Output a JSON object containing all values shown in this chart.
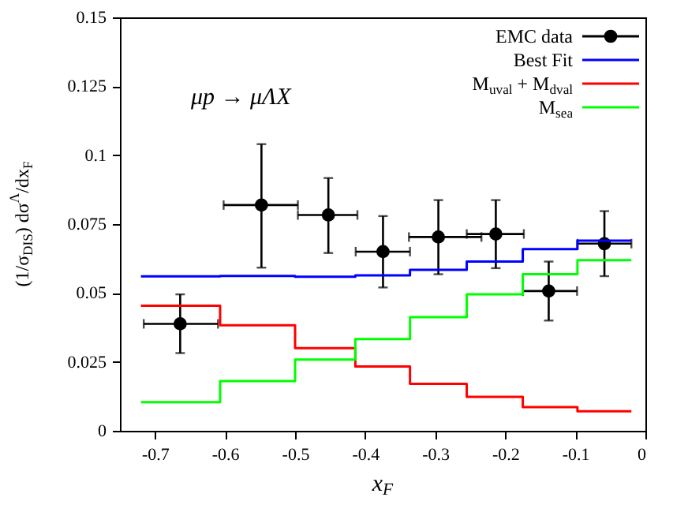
{
  "chart_data": {
    "type": "step",
    "xlabel": "x$_{F}$",
    "ylabel": "(1/σ$_{DIS}$) dσ$^{Λ}$/dx$_{F}$",
    "annotations": [
      "μp → μΛX"
    ],
    "xlim": [
      -0.75,
      0
    ],
    "xticks": [
      -0.7,
      -0.6,
      -0.5,
      -0.4,
      -0.3,
      -0.2,
      -0.1,
      0
    ],
    "ylim": [
      0,
      0.15
    ],
    "yticks": [
      0,
      0.025,
      0.05,
      0.075,
      0.1,
      0.125,
      0.15
    ],
    "grid": false,
    "legend": "top right",
    "line_style": "solid",
    "series": [
      {
        "name": "EMC data",
        "type": "scatter",
        "marker": "circle",
        "color": "#000000",
        "x": [
          -0.664,
          -0.548,
          -0.4525,
          -0.3745,
          -0.2955,
          -0.2135,
          -0.138,
          -0.0585
        ],
        "values": [
          0.0388,
          0.0819,
          0.0783,
          0.065,
          0.0703,
          0.0714,
          0.0507,
          0.0679
        ],
        "errors": [
          [
            0.0282,
            0.0495
          ],
          [
            0.0592,
            0.104
          ],
          [
            0.0645,
            0.0917
          ],
          [
            0.052,
            0.0779
          ],
          [
            0.0568,
            0.0837
          ],
          [
            0.059,
            0.0837
          ],
          [
            0.04,
            0.0614
          ],
          [
            0.0561,
            0.0797
          ]
        ],
        "xerrors": [
          [
            -0.716,
            -0.61
          ],
          [
            -0.602,
            -0.496
          ],
          [
            -0.496,
            -0.411
          ],
          [
            -0.4135,
            -0.336
          ],
          [
            -0.3375,
            -0.234
          ],
          [
            -0.255,
            -0.1735
          ],
          [
            -0.175,
            -0.0975
          ],
          [
            -0.097,
            -0.02
          ]
        ]
      },
      {
        "name": "Best Fit",
        "color": "#0000ff",
        "x": [
          -0.72,
          -0.607,
          -0.5,
          -0.414,
          -0.336,
          -0.255,
          -0.175,
          -0.097,
          -0.02
        ],
        "values": [
          0.056,
          0.0562,
          0.0559,
          0.0564,
          0.0584,
          0.0614,
          0.0659,
          0.069,
          0.069
        ]
      },
      {
        "name": "M$_{uval}$ + M$_{dval}$",
        "color": "#ff0000",
        "x": [
          -0.72,
          -0.607,
          -0.5,
          -0.414,
          -0.336,
          -0.255,
          -0.175,
          -0.097,
          -0.02
        ],
        "values": [
          0.0454,
          0.0383,
          0.03,
          0.0233,
          0.017,
          0.0123,
          0.0086,
          0.0071,
          0.0071
        ]
      },
      {
        "name": "M$_{sea}$",
        "color": "#00ff00",
        "x": [
          -0.72,
          -0.607,
          -0.5,
          -0.414,
          -0.336,
          -0.255,
          -0.175,
          -0.097,
          -0.02
        ],
        "values": [
          0.0104,
          0.018,
          0.0258,
          0.0333,
          0.0412,
          0.0495,
          0.0568,
          0.0619,
          0.0619
        ]
      }
    ]
  }
}
